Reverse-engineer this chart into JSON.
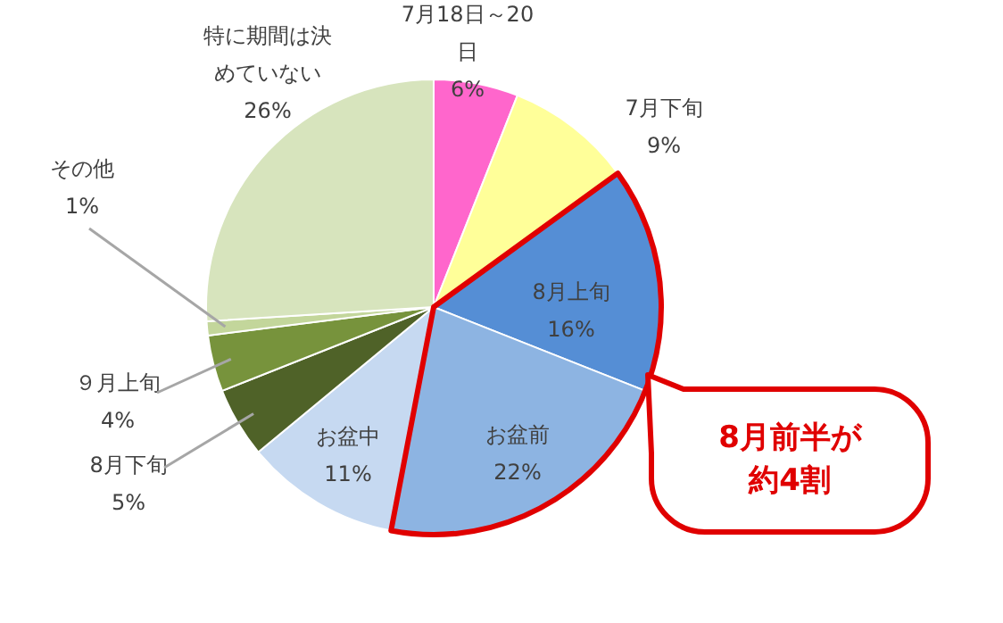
{
  "chart_data": {
    "type": "pie",
    "categories": [
      "7月18日～20日",
      "7月下旬",
      "8月上旬",
      "お盆前",
      "お盆中",
      "8月下旬",
      "９月上旬",
      "その他",
      "特に期間は決めていない"
    ],
    "values": [
      6,
      9,
      16,
      22,
      11,
      5,
      4,
      1,
      26
    ],
    "colors": [
      "#ff66cc",
      "#ffff99",
      "#558ed5",
      "#8db4e2",
      "#c6d9f1",
      "#4f6228",
      "#77933c",
      "#c3d69b",
      "#d7e4bd"
    ],
    "value_labels": [
      "6%",
      "9%",
      "16%",
      "22%",
      "11%",
      "5%",
      "4%",
      "1%",
      "26%"
    ],
    "annotations": [
      "8月前半が約4割"
    ]
  }
}
